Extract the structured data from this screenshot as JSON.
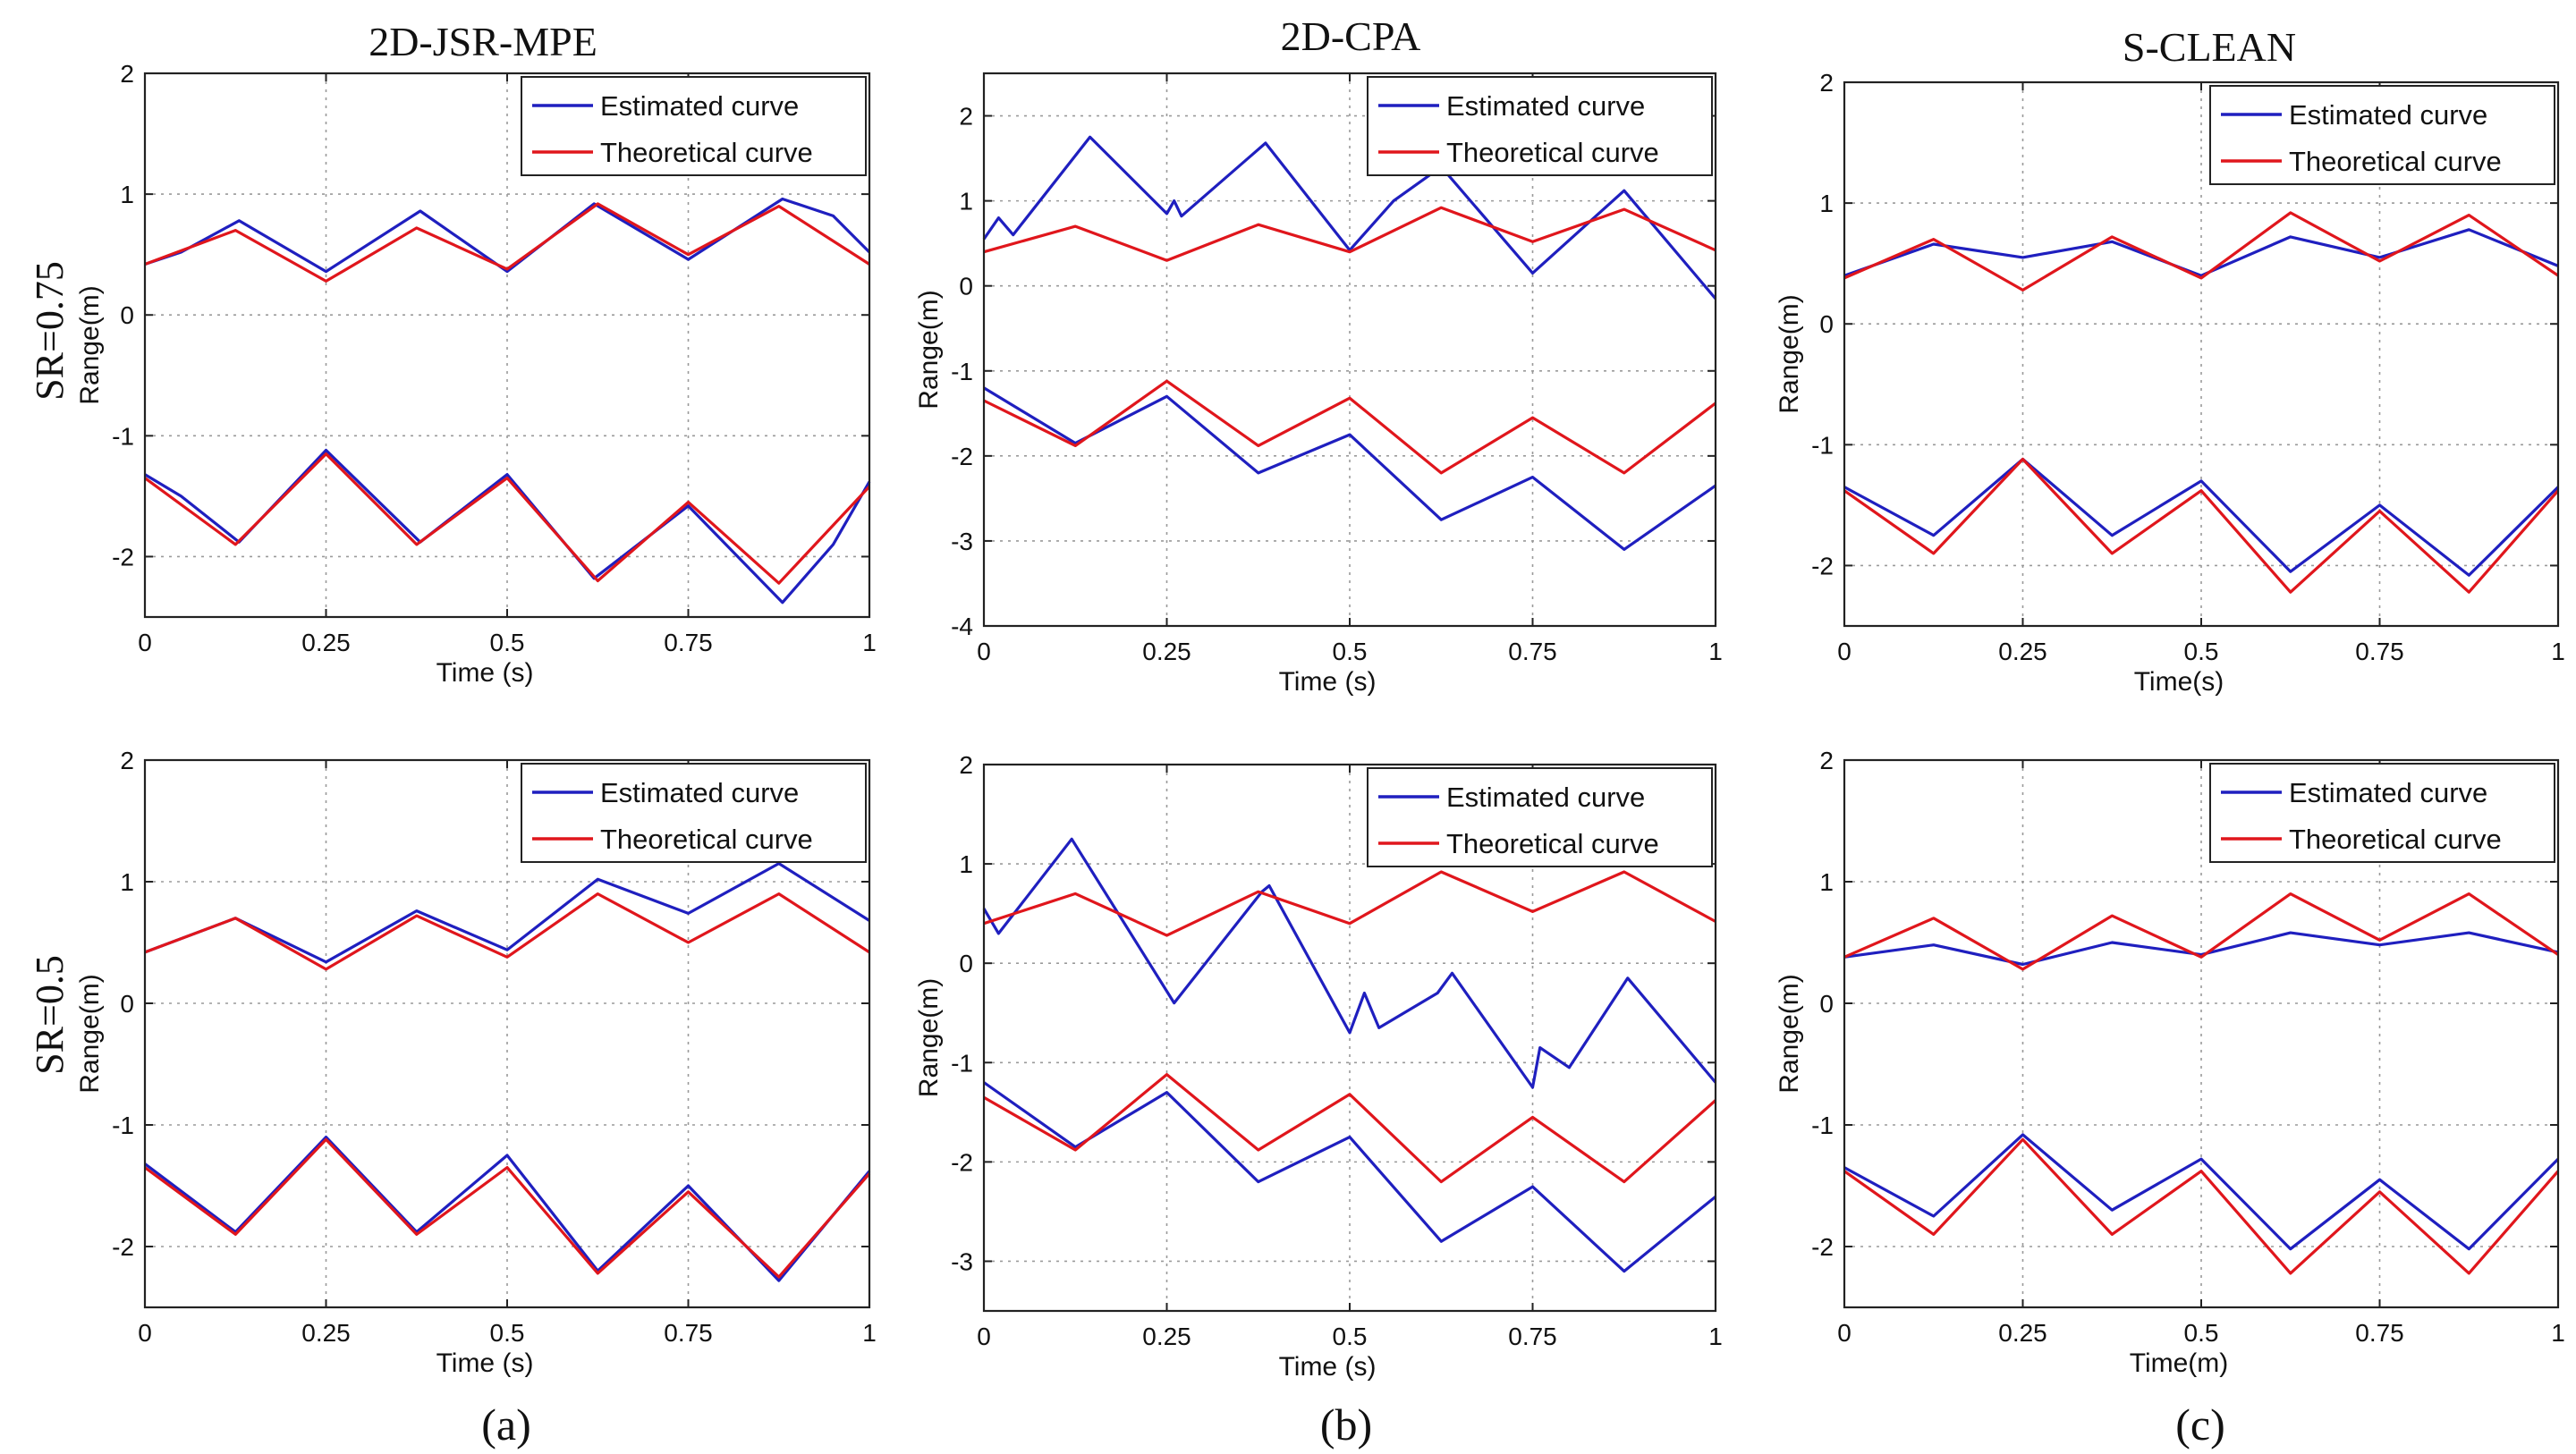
{
  "figure": {
    "column_titles": [
      "2D-JSR-MPE",
      "2D-CPA",
      "S-CLEAN"
    ],
    "row_labels": [
      "SR=0.75",
      "SR=0.5"
    ],
    "panel_labels": [
      "(a)",
      "(b)",
      "(c)"
    ]
  },
  "colors": {
    "estimated": "#1f1fbf",
    "theoretical": "#e0161c"
  },
  "chart_data": [
    {
      "type": "line",
      "id": "jsr-sr075",
      "title": "2D-JSR-MPE",
      "row": "SR=0.75",
      "xlabel": "Time (s)",
      "ylabel": "Range(m)",
      "xlim": [
        0,
        1
      ],
      "ylim": [
        -2.5,
        2
      ],
      "xticks": [
        0,
        0.25,
        0.5,
        0.75,
        1
      ],
      "xtick_labels": [
        "0",
        "0.25",
        "0.5",
        "0.75",
        "1"
      ],
      "yticks": [
        -2,
        -1,
        0,
        1,
        2
      ],
      "ytick_labels": [
        "-2",
        "-1",
        "0",
        "1",
        "2"
      ],
      "grid": true,
      "legend": [
        "Estimated curve",
        "Theoretical curve"
      ],
      "series": [
        {
          "name": "Estimated curve",
          "kind": "estimated",
          "x": [
            0,
            0.05,
            0.13,
            0.25,
            0.38,
            0.5,
            0.62,
            0.75,
            0.88,
            0.95,
            1
          ],
          "y": [
            0.42,
            0.52,
            0.78,
            0.36,
            0.86,
            0.36,
            0.92,
            0.46,
            0.96,
            0.82,
            0.52
          ]
        },
        {
          "name": "Estimated curve",
          "kind": "estimated",
          "x": [
            0,
            0.05,
            0.13,
            0.25,
            0.38,
            0.5,
            0.62,
            0.75,
            0.88,
            0.95,
            1
          ],
          "y": [
            -1.32,
            -1.5,
            -1.88,
            -1.12,
            -1.88,
            -1.32,
            -2.18,
            -1.58,
            -2.38,
            -1.9,
            -1.38
          ]
        },
        {
          "name": "Theoretical curve",
          "kind": "theoretical",
          "x": [
            0,
            0.125,
            0.25,
            0.375,
            0.5,
            0.625,
            0.75,
            0.875,
            1
          ],
          "y": [
            0.42,
            0.7,
            0.28,
            0.72,
            0.38,
            0.92,
            0.5,
            0.9,
            0.42
          ]
        },
        {
          "name": "Theoretical curve",
          "kind": "theoretical",
          "x": [
            0,
            0.125,
            0.25,
            0.375,
            0.5,
            0.625,
            0.75,
            0.875,
            1
          ],
          "y": [
            -1.35,
            -1.9,
            -1.15,
            -1.9,
            -1.35,
            -2.2,
            -1.55,
            -2.22,
            -1.42
          ]
        }
      ]
    },
    {
      "type": "line",
      "id": "cpa-sr075",
      "title": "2D-CPA",
      "row": "SR=0.75",
      "xlabel": "Time (s)",
      "ylabel": "Range(m)",
      "xlim": [
        0,
        1
      ],
      "ylim": [
        -4,
        2.5
      ],
      "xticks": [
        0,
        0.25,
        0.5,
        0.75,
        1
      ],
      "xtick_labels": [
        "0",
        "0.25",
        "0.5",
        "0.75",
        "1"
      ],
      "yticks": [
        -4,
        -3,
        -2,
        -1,
        0,
        1,
        2
      ],
      "ytick_labels": [
        "-4",
        "-3",
        "-2",
        "-1",
        "0",
        "1",
        "2"
      ],
      "grid": true,
      "legend": [
        "Estimated curve",
        "Theoretical curve"
      ],
      "series": [
        {
          "name": "Estimated curve",
          "kind": "estimated",
          "x": [
            0,
            0.02,
            0.04,
            0.145,
            0.25,
            0.26,
            0.27,
            0.385,
            0.5,
            0.56,
            0.625,
            0.75,
            0.875,
            1
          ],
          "y": [
            0.55,
            0.8,
            0.6,
            1.75,
            0.85,
            1.0,
            0.82,
            1.68,
            0.42,
            1.0,
            1.4,
            0.15,
            1.12,
            -0.15
          ]
        },
        {
          "name": "Estimated curve",
          "kind": "estimated",
          "x": [
            0,
            0.125,
            0.25,
            0.375,
            0.5,
            0.625,
            0.75,
            0.875,
            1
          ],
          "y": [
            -1.2,
            -1.85,
            -1.3,
            -2.2,
            -1.75,
            -2.75,
            -2.25,
            -3.1,
            -2.35
          ]
        },
        {
          "name": "Theoretical curve",
          "kind": "theoretical",
          "x": [
            0,
            0.125,
            0.25,
            0.375,
            0.5,
            0.625,
            0.75,
            0.875,
            1
          ],
          "y": [
            0.4,
            0.7,
            0.3,
            0.72,
            0.4,
            0.92,
            0.52,
            0.9,
            0.42
          ]
        },
        {
          "name": "Theoretical curve",
          "kind": "theoretical",
          "x": [
            0,
            0.125,
            0.25,
            0.375,
            0.5,
            0.625,
            0.75,
            0.875,
            1
          ],
          "y": [
            -1.35,
            -1.88,
            -1.12,
            -1.88,
            -1.32,
            -2.2,
            -1.55,
            -2.2,
            -1.38
          ]
        }
      ]
    },
    {
      "type": "line",
      "id": "sclean-sr075",
      "title": "S-CLEAN",
      "row": "SR=0.75",
      "xlabel": "Time(s)",
      "ylabel": "Range(m)",
      "xlim": [
        0,
        1
      ],
      "ylim": [
        -2.5,
        2
      ],
      "xticks": [
        0,
        0.25,
        0.5,
        0.75,
        1
      ],
      "xtick_labels": [
        "0",
        "0.25",
        "0.5",
        "0.75",
        "1"
      ],
      "yticks": [
        -2,
        -1,
        0,
        1,
        2
      ],
      "ytick_labels": [
        "-2",
        "-1",
        "0",
        "1",
        "2"
      ],
      "grid": true,
      "legend": [
        "Estimated curve",
        "Theoretical curve"
      ],
      "series": [
        {
          "name": "Estimated curve",
          "kind": "estimated",
          "x": [
            0,
            0.125,
            0.25,
            0.375,
            0.5,
            0.625,
            0.75,
            0.875,
            1
          ],
          "y": [
            0.4,
            0.66,
            0.55,
            0.68,
            0.4,
            0.72,
            0.55,
            0.78,
            0.48
          ]
        },
        {
          "name": "Estimated curve",
          "kind": "estimated",
          "x": [
            0,
            0.125,
            0.25,
            0.375,
            0.5,
            0.625,
            0.75,
            0.875,
            1
          ],
          "y": [
            -1.35,
            -1.75,
            -1.12,
            -1.75,
            -1.3,
            -2.05,
            -1.5,
            -2.08,
            -1.35
          ]
        },
        {
          "name": "Theoretical curve",
          "kind": "theoretical",
          "x": [
            0,
            0.125,
            0.25,
            0.375,
            0.5,
            0.625,
            0.75,
            0.875,
            1
          ],
          "y": [
            0.38,
            0.7,
            0.28,
            0.72,
            0.38,
            0.92,
            0.52,
            0.9,
            0.4
          ]
        },
        {
          "name": "Theoretical curve",
          "kind": "theoretical",
          "x": [
            0,
            0.125,
            0.25,
            0.375,
            0.5,
            0.625,
            0.75,
            0.875,
            1
          ],
          "y": [
            -1.38,
            -1.9,
            -1.12,
            -1.9,
            -1.38,
            -2.22,
            -1.55,
            -2.22,
            -1.38
          ]
        }
      ]
    },
    {
      "type": "line",
      "id": "jsr-sr05",
      "title": "2D-JSR-MPE",
      "row": "SR=0.5",
      "xlabel": "Time (s)",
      "ylabel": "Range(m)",
      "xlim": [
        0,
        1
      ],
      "ylim": [
        -2.5,
        2
      ],
      "xticks": [
        0,
        0.25,
        0.5,
        0.75,
        1
      ],
      "xtick_labels": [
        "0",
        "0.25",
        "0.5",
        "0.75",
        "1"
      ],
      "yticks": [
        -2,
        -1,
        0,
        1,
        2
      ],
      "ytick_labels": [
        "-2",
        "-1",
        "0",
        "1",
        "2"
      ],
      "grid": true,
      "legend": [
        "Estimated curve",
        "Theoretical curve"
      ],
      "series": [
        {
          "name": "Estimated curve",
          "kind": "estimated",
          "x": [
            0,
            0.125,
            0.25,
            0.375,
            0.5,
            0.625,
            0.75,
            0.875,
            1
          ],
          "y": [
            0.42,
            0.7,
            0.34,
            0.76,
            0.44,
            1.02,
            0.74,
            1.15,
            0.68
          ]
        },
        {
          "name": "Estimated curve",
          "kind": "estimated",
          "x": [
            0,
            0.125,
            0.25,
            0.375,
            0.5,
            0.625,
            0.75,
            0.875,
            1
          ],
          "y": [
            -1.32,
            -1.88,
            -1.1,
            -1.88,
            -1.25,
            -2.2,
            -1.5,
            -2.28,
            -1.38
          ]
        },
        {
          "name": "Theoretical curve",
          "kind": "theoretical",
          "x": [
            0,
            0.125,
            0.25,
            0.375,
            0.5,
            0.625,
            0.75,
            0.875,
            1
          ],
          "y": [
            0.42,
            0.7,
            0.28,
            0.72,
            0.38,
            0.9,
            0.5,
            0.9,
            0.42
          ]
        },
        {
          "name": "Theoretical curve",
          "kind": "theoretical",
          "x": [
            0,
            0.125,
            0.25,
            0.375,
            0.5,
            0.625,
            0.75,
            0.875,
            1
          ],
          "y": [
            -1.35,
            -1.9,
            -1.12,
            -1.9,
            -1.35,
            -2.22,
            -1.55,
            -2.25,
            -1.4
          ]
        }
      ]
    },
    {
      "type": "line",
      "id": "cpa-sr05",
      "title": "2D-CPA",
      "row": "SR=0.5",
      "xlabel": "Time (s)",
      "ylabel": "Range(m)",
      "xlim": [
        0,
        1
      ],
      "ylim": [
        -3.5,
        2
      ],
      "xticks": [
        0,
        0.25,
        0.5,
        0.75,
        1
      ],
      "xtick_labels": [
        "0",
        "0.25",
        "0.5",
        "0.75",
        "1"
      ],
      "yticks": [
        -3,
        -2,
        -1,
        0,
        1,
        2
      ],
      "ytick_labels": [
        "-3",
        "-2",
        "-1",
        "0",
        "1",
        "2"
      ],
      "grid": true,
      "legend": [
        "Estimated curve",
        "Theoretical curve"
      ],
      "series": [
        {
          "name": "Estimated curve",
          "kind": "estimated",
          "x": [
            0,
            0.02,
            0.12,
            0.26,
            0.38,
            0.39,
            0.5,
            0.52,
            0.54,
            0.62,
            0.64,
            0.75,
            0.76,
            0.8,
            0.88,
            1
          ],
          "y": [
            0.55,
            0.3,
            1.25,
            -0.4,
            0.72,
            0.78,
            -0.7,
            -0.3,
            -0.65,
            -0.3,
            -0.1,
            -1.25,
            -0.85,
            -1.05,
            -0.15,
            -1.2
          ]
        },
        {
          "name": "Estimated curve",
          "kind": "estimated",
          "x": [
            0,
            0.125,
            0.25,
            0.375,
            0.5,
            0.625,
            0.75,
            0.875,
            1
          ],
          "y": [
            -1.2,
            -1.85,
            -1.3,
            -2.2,
            -1.75,
            -2.8,
            -2.25,
            -3.1,
            -2.35
          ]
        },
        {
          "name": "Theoretical curve",
          "kind": "theoretical",
          "x": [
            0,
            0.125,
            0.25,
            0.375,
            0.5,
            0.625,
            0.75,
            0.875,
            1
          ],
          "y": [
            0.4,
            0.7,
            0.28,
            0.72,
            0.4,
            0.92,
            0.52,
            0.92,
            0.42
          ]
        },
        {
          "name": "Theoretical curve",
          "kind": "theoretical",
          "x": [
            0,
            0.125,
            0.25,
            0.375,
            0.5,
            0.625,
            0.75,
            0.875,
            1
          ],
          "y": [
            -1.35,
            -1.88,
            -1.12,
            -1.88,
            -1.32,
            -2.2,
            -1.55,
            -2.2,
            -1.38
          ]
        }
      ]
    },
    {
      "type": "line",
      "id": "sclean-sr05",
      "title": "S-CLEAN",
      "row": "SR=0.5",
      "xlabel": "Time(m)",
      "ylabel": "Range(m)",
      "xlim": [
        0,
        1
      ],
      "ylim": [
        -2.5,
        2
      ],
      "xticks": [
        0,
        0.25,
        0.5,
        0.75,
        1
      ],
      "xtick_labels": [
        "0",
        "0.25",
        "0.5",
        "0.75",
        "1"
      ],
      "yticks": [
        -2,
        -1,
        0,
        1,
        2
      ],
      "ytick_labels": [
        "-2",
        "-1",
        "0",
        "1",
        "2"
      ],
      "grid": true,
      "legend": [
        "Estimated curve",
        "Theoretical curve"
      ],
      "series": [
        {
          "name": "Estimated curve",
          "kind": "estimated",
          "x": [
            0,
            0.125,
            0.25,
            0.375,
            0.5,
            0.625,
            0.75,
            0.875,
            1
          ],
          "y": [
            0.38,
            0.48,
            0.32,
            0.5,
            0.4,
            0.58,
            0.48,
            0.58,
            0.42
          ]
        },
        {
          "name": "Estimated curve",
          "kind": "estimated",
          "x": [
            0,
            0.125,
            0.25,
            0.375,
            0.5,
            0.625,
            0.75,
            0.875,
            1
          ],
          "y": [
            -1.35,
            -1.75,
            -1.08,
            -1.7,
            -1.28,
            -2.02,
            -1.45,
            -2.02,
            -1.28
          ]
        },
        {
          "name": "Theoretical curve",
          "kind": "theoretical",
          "x": [
            0,
            0.125,
            0.25,
            0.375,
            0.5,
            0.625,
            0.75,
            0.875,
            1
          ],
          "y": [
            0.38,
            0.7,
            0.28,
            0.72,
            0.38,
            0.9,
            0.52,
            0.9,
            0.4
          ]
        },
        {
          "name": "Theoretical curve",
          "kind": "theoretical",
          "x": [
            0,
            0.125,
            0.25,
            0.375,
            0.5,
            0.625,
            0.75,
            0.875,
            1
          ],
          "y": [
            -1.38,
            -1.9,
            -1.12,
            -1.9,
            -1.38,
            -2.22,
            -1.55,
            -2.22,
            -1.38
          ]
        }
      ]
    }
  ]
}
